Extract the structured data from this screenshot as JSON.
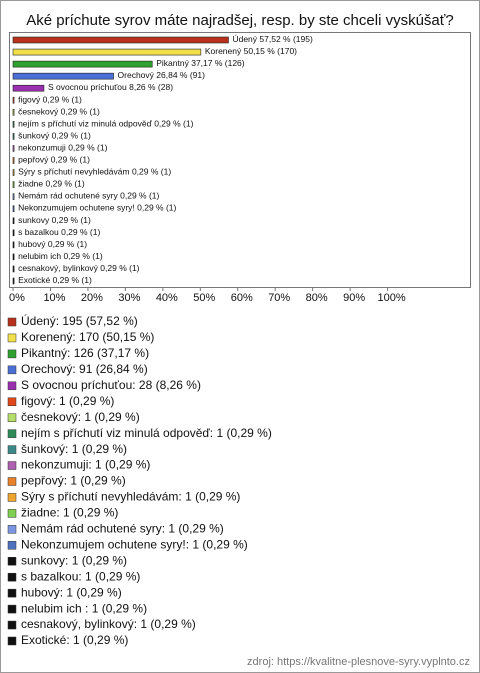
{
  "chart_data": {
    "type": "bar",
    "orientation": "horizontal",
    "title": "Aké príchute syrov máte najradšej, resp. by ste chceli vyskúšať?",
    "categories": [
      "Údený",
      "Korenený",
      "Pikantný",
      "Orechový",
      "S ovocnou príchuťou",
      "figový",
      "česnekový",
      "nejím s příchutí viz minulá odpověď",
      "šunkový",
      "nekonzumuji",
      "pepřový",
      "Sýry s příchutí nevyhledávám",
      "žiadne",
      "Nemám rád ochutené syry",
      "Nekonzumujem ochutene syry!",
      "sunkovy",
      "s bazalkou",
      "hubový",
      "nelubim ich ",
      "cesnakový, bylinkový",
      "Exotické"
    ],
    "values": [
      57.52,
      50.15,
      37.17,
      26.84,
      8.26,
      0.29,
      0.29,
      0.29,
      0.29,
      0.29,
      0.29,
      0.29,
      0.29,
      0.29,
      0.29,
      0.29,
      0.29,
      0.29,
      0.29,
      0.29,
      0.29
    ],
    "value_labels": [
      "57,52 % (195)",
      "50,15 % (170)",
      "37,17 % (126)",
      "26,84 % (91)",
      "8,26 % (28)",
      "0,29 % (1)",
      "0,29 % (1)",
      "0,29 % (1)",
      "0,29 % (1)",
      "0,29 % (1)",
      "0,29 % (1)",
      "0,29 % (1)",
      "0,29 % (1)",
      "0,29 % (1)",
      "0,29 % (1)",
      "0,29 % (1)",
      "0,29 % (1)",
      "0,29 % (1)",
      "0,29 % (1)",
      "0,29 % (1)",
      "0,29 % (1)"
    ],
    "colors": [
      "#b8311c",
      "#f2e04a",
      "#2ea12e",
      "#4a6fd6",
      "#9a2fb0",
      "#e0481a",
      "#b5de6a",
      "#2e8b57",
      "#3a8888",
      "#b060b0",
      "#e8802a",
      "#f0a430",
      "#7fd050",
      "#7c95e2",
      "#5070c0",
      "#111111",
      "#111111",
      "#111111",
      "#111111",
      "#111111",
      "#111111"
    ],
    "legend_labels": [
      "Údený: 195 (57,52 %)",
      "Korenený: 170 (50,15 %)",
      "Pikantný: 126 (37,17 %)",
      "Orechový: 91 (26,84 %)",
      "S ovocnou príchuťou: 28 (8,26 %)",
      "figový: 1 (0,29 %)",
      "česnekový: 1 (0,29 %)",
      "nejím s příchutí viz minulá odpověď: 1 (0,29 %)",
      "šunkový: 1 (0,29 %)",
      "nekonzumuji: 1 (0,29 %)",
      "pepřový: 1 (0,29 %)",
      "Sýry s příchutí nevyhledávám: 1 (0,29 %)",
      "žiadne: 1 (0,29 %)",
      "Nemám rád ochutené syry: 1 (0,29 %)",
      "Nekonzumujem ochutene syry!: 1 (0,29 %)",
      "sunkovy: 1 (0,29 %)",
      "s bazalkou: 1 (0,29 %)",
      "hubový: 1 (0,29 %)",
      "nelubim ich : 1 (0,29 %)",
      "cesnakový, bylinkový: 1 (0,29 %)",
      "Exotické: 1 (0,29 %)"
    ],
    "xlim": [
      0,
      122
    ],
    "xticks": [
      {
        "value": 0,
        "label": "0%"
      },
      {
        "value": 10,
        "label": "10%"
      },
      {
        "value": 20,
        "label": "20%"
      },
      {
        "value": 30,
        "label": "30%"
      },
      {
        "value": 40,
        "label": "40%"
      },
      {
        "value": 50,
        "label": "50%"
      },
      {
        "value": 60,
        "label": "60%"
      },
      {
        "value": 70,
        "label": "70%"
      },
      {
        "value": 80,
        "label": "80%"
      },
      {
        "value": 90,
        "label": "90%"
      },
      {
        "value": 100,
        "label": "100%"
      }
    ],
    "source": "zdroj: https://kvalitne-plesnove-syry.vyplnto.cz"
  }
}
